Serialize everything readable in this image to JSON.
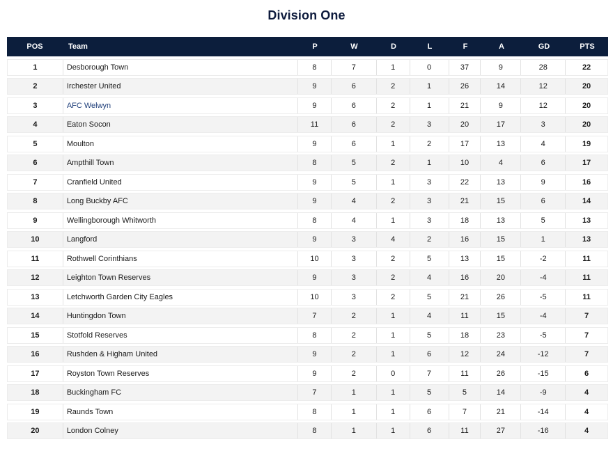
{
  "title": "Division One",
  "columns": {
    "pos": "POS",
    "team": "Team",
    "p": "P",
    "w": "W",
    "d": "D",
    "l": "L",
    "f": "F",
    "a": "A",
    "gd": "GD",
    "pts": "PTS"
  },
  "rows": [
    {
      "pos": "1",
      "team": "Desborough Town",
      "p": "8",
      "w": "7",
      "d": "1",
      "l": "0",
      "f": "37",
      "a": "9",
      "gd": "28",
      "pts": "22"
    },
    {
      "pos": "2",
      "team": "Irchester United",
      "p": "9",
      "w": "6",
      "d": "2",
      "l": "1",
      "f": "26",
      "a": "14",
      "gd": "12",
      "pts": "20"
    },
    {
      "pos": "3",
      "team": "AFC Welwyn",
      "p": "9",
      "w": "6",
      "d": "2",
      "l": "1",
      "f": "21",
      "a": "9",
      "gd": "12",
      "pts": "20"
    },
    {
      "pos": "4",
      "team": "Eaton Socon",
      "p": "11",
      "w": "6",
      "d": "2",
      "l": "3",
      "f": "20",
      "a": "17",
      "gd": "3",
      "pts": "20"
    },
    {
      "pos": "5",
      "team": "Moulton",
      "p": "9",
      "w": "6",
      "d": "1",
      "l": "2",
      "f": "17",
      "a": "13",
      "gd": "4",
      "pts": "19"
    },
    {
      "pos": "6",
      "team": "Ampthill Town",
      "p": "8",
      "w": "5",
      "d": "2",
      "l": "1",
      "f": "10",
      "a": "4",
      "gd": "6",
      "pts": "17"
    },
    {
      "pos": "7",
      "team": "Cranfield United",
      "p": "9",
      "w": "5",
      "d": "1",
      "l": "3",
      "f": "22",
      "a": "13",
      "gd": "9",
      "pts": "16"
    },
    {
      "pos": "8",
      "team": "Long Buckby AFC",
      "p": "9",
      "w": "4",
      "d": "2",
      "l": "3",
      "f": "21",
      "a": "15",
      "gd": "6",
      "pts": "14"
    },
    {
      "pos": "9",
      "team": "Wellingborough Whitworth",
      "p": "8",
      "w": "4",
      "d": "1",
      "l": "3",
      "f": "18",
      "a": "13",
      "gd": "5",
      "pts": "13"
    },
    {
      "pos": "10",
      "team": "Langford",
      "p": "9",
      "w": "3",
      "d": "4",
      "l": "2",
      "f": "16",
      "a": "15",
      "gd": "1",
      "pts": "13"
    },
    {
      "pos": "11",
      "team": "Rothwell Corinthians",
      "p": "10",
      "w": "3",
      "d": "2",
      "l": "5",
      "f": "13",
      "a": "15",
      "gd": "-2",
      "pts": "11"
    },
    {
      "pos": "12",
      "team": "Leighton Town Reserves",
      "p": "9",
      "w": "3",
      "d": "2",
      "l": "4",
      "f": "16",
      "a": "20",
      "gd": "-4",
      "pts": "11"
    },
    {
      "pos": "13",
      "team": "Letchworth Garden City Eagles",
      "p": "10",
      "w": "3",
      "d": "2",
      "l": "5",
      "f": "21",
      "a": "26",
      "gd": "-5",
      "pts": "11"
    },
    {
      "pos": "14",
      "team": "Huntingdon Town",
      "p": "7",
      "w": "2",
      "d": "1",
      "l": "4",
      "f": "11",
      "a": "15",
      "gd": "-4",
      "pts": "7"
    },
    {
      "pos": "15",
      "team": "Stotfold Reserves",
      "p": "8",
      "w": "2",
      "d": "1",
      "l": "5",
      "f": "18",
      "a": "23",
      "gd": "-5",
      "pts": "7"
    },
    {
      "pos": "16",
      "team": "Rushden & Higham United",
      "p": "9",
      "w": "2",
      "d": "1",
      "l": "6",
      "f": "12",
      "a": "24",
      "gd": "-12",
      "pts": "7"
    },
    {
      "pos": "17",
      "team": "Royston Town Reserves",
      "p": "9",
      "w": "2",
      "d": "0",
      "l": "7",
      "f": "11",
      "a": "26",
      "gd": "-15",
      "pts": "6"
    },
    {
      "pos": "18",
      "team": "Buckingham FC",
      "p": "7",
      "w": "1",
      "d": "1",
      "l": "5",
      "f": "5",
      "a": "14",
      "gd": "-9",
      "pts": "4"
    },
    {
      "pos": "19",
      "team": "Raunds Town",
      "p": "8",
      "w": "1",
      "d": "1",
      "l": "6",
      "f": "7",
      "a": "21",
      "gd": "-14",
      "pts": "4"
    },
    {
      "pos": "20",
      "team": "London Colney",
      "p": "8",
      "w": "1",
      "d": "1",
      "l": "6",
      "f": "11",
      "a": "27",
      "gd": "-16",
      "pts": "4"
    }
  ],
  "colors": {
    "header_bg": "#0c1e3c",
    "title": "#0e1b3d",
    "row_alt": "#f3f3f3",
    "link_team": "#1f3f7a"
  }
}
